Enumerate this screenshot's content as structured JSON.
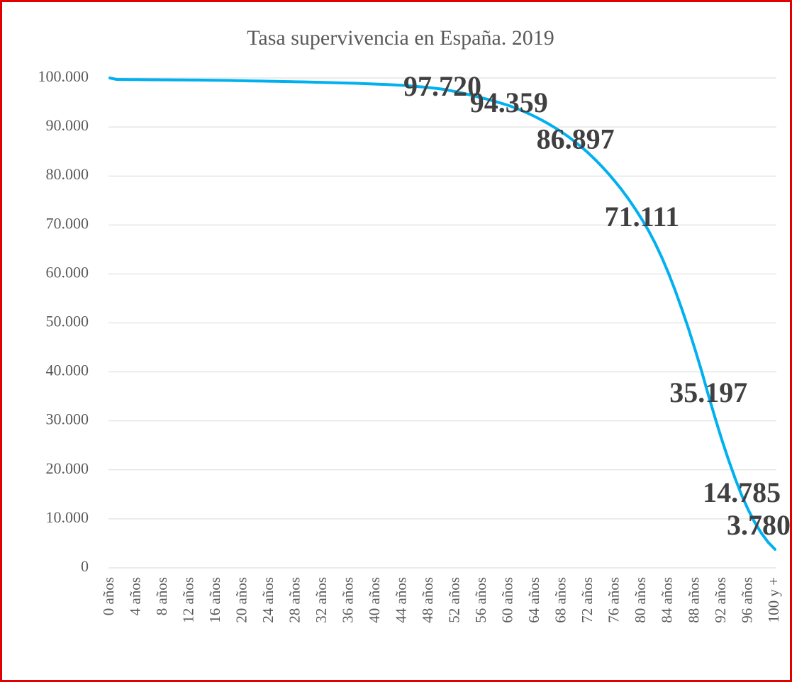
{
  "chart_data": {
    "type": "line",
    "title": "Tasa supervivencia en España. 2019",
    "categories": [
      "0 años",
      null,
      null,
      null,
      "4 años",
      null,
      null,
      null,
      "8 años",
      null,
      null,
      null,
      "12 años",
      null,
      null,
      null,
      "16 años",
      null,
      null,
      null,
      "20 años",
      null,
      null,
      null,
      "24 años",
      null,
      null,
      null,
      "28 años",
      null,
      null,
      null,
      "32 años",
      null,
      null,
      null,
      "36 años",
      null,
      null,
      null,
      "40 años",
      null,
      null,
      null,
      "44 años",
      null,
      null,
      null,
      "48 años",
      null,
      null,
      null,
      "52 años",
      null,
      null,
      null,
      "56 años",
      null,
      null,
      null,
      "60 años",
      null,
      null,
      null,
      "64 años",
      null,
      null,
      null,
      "68 años",
      null,
      null,
      null,
      "72 años",
      null,
      null,
      null,
      "76 años",
      null,
      null,
      null,
      "80 años",
      null,
      null,
      null,
      "84 años",
      null,
      null,
      null,
      "88 años",
      null,
      null,
      null,
      "92 años",
      null,
      null,
      null,
      "96 años",
      null,
      null,
      null,
      "100 y +"
    ],
    "series": [
      {
        "name": null,
        "color": "#00b0f0",
        "values": [
          100000,
          99710,
          99692,
          99678,
          99665,
          99655,
          99645,
          99636,
          99627,
          99618,
          99608,
          99598,
          99588,
          99576,
          99563,
          99548,
          99530,
          99510,
          99485,
          99460,
          99435,
          99410,
          99385,
          99360,
          99335,
          99310,
          99285,
          99255,
          99225,
          99195,
          99165,
          99130,
          99095,
          99060,
          99025,
          98990,
          98950,
          98910,
          98865,
          98815,
          98760,
          98700,
          98640,
          98570,
          98490,
          98400,
          98290,
          98170,
          98030,
          97880,
          97720,
          97470,
          97200,
          96910,
          96600,
          96270,
          95925,
          95560,
          95175,
          94775,
          94359,
          93859,
          93309,
          92709,
          92059,
          91354,
          90594,
          89774,
          88894,
          87949,
          86897,
          85797,
          84597,
          83297,
          81897,
          80397,
          78797,
          77097,
          75247,
          73247,
          71111,
          68811,
          66211,
          63311,
          60111,
          56611,
          52811,
          48811,
          44511,
          40011,
          35197,
          30597,
          26197,
          22097,
          18297,
          14785,
          11785,
          9185,
          6985,
          5185,
          3780
        ],
        "value_labels": [
          null,
          null,
          null,
          null,
          null,
          null,
          null,
          null,
          null,
          null,
          null,
          null,
          null,
          null,
          null,
          null,
          null,
          null,
          null,
          null,
          null,
          null,
          null,
          null,
          null,
          null,
          null,
          null,
          null,
          null,
          null,
          null,
          null,
          null,
          null,
          null,
          null,
          null,
          null,
          null,
          null,
          null,
          null,
          null,
          null,
          null,
          null,
          null,
          null,
          null,
          "97.720",
          null,
          null,
          null,
          null,
          null,
          null,
          null,
          null,
          null,
          "94.359",
          null,
          null,
          null,
          null,
          null,
          null,
          null,
          null,
          null,
          "86.897",
          null,
          null,
          null,
          null,
          null,
          null,
          null,
          null,
          null,
          "71.111",
          null,
          null,
          null,
          null,
          null,
          null,
          null,
          null,
          null,
          "35.197",
          null,
          null,
          null,
          null,
          "14.785",
          null,
          null,
          null,
          null,
          "3.780"
        ]
      }
    ],
    "ylim": [
      0,
      100000
    ],
    "yticks": [
      0,
      {
        "value": 10000,
        "label": "10.000"
      },
      {
        "value": 20000,
        "label": "20.000"
      },
      {
        "value": 30000,
        "label": "30.000"
      },
      {
        "value": 40000,
        "label": "40.000"
      },
      {
        "value": 50000,
        "label": "50.000"
      },
      {
        "value": 60000,
        "label": "60.000"
      },
      {
        "value": 70000,
        "label": "70.000"
      },
      {
        "value": 80000,
        "label": "80.000"
      },
      {
        "value": 90000,
        "label": "90.000"
      },
      {
        "value": 100000,
        "label": "100.000"
      }
    ],
    "grid": true
  }
}
